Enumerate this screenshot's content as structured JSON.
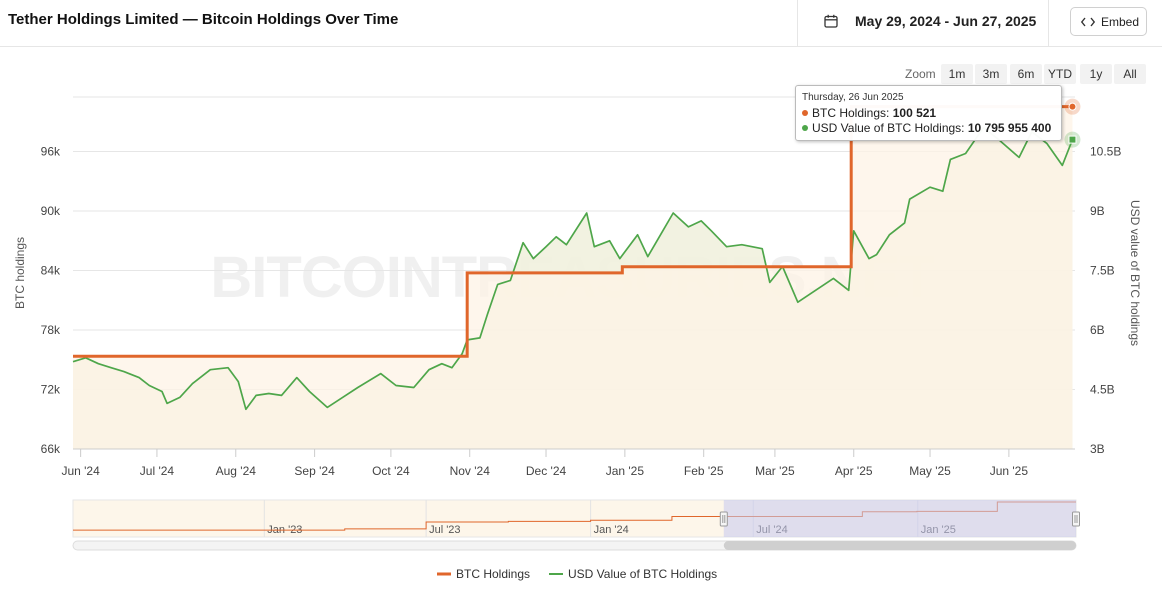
{
  "header": {
    "title": "Tether Holdings Limited — Bitcoin Holdings Over Time",
    "date_range": "May 29, 2024 - Jun 27, 2025",
    "embed_label": "Embed"
  },
  "zoom": {
    "label": "Zoom",
    "buttons": [
      "1m",
      "3m",
      "6m",
      "YTD",
      "1y",
      "All"
    ]
  },
  "watermark": "BITCOINTREASURIES.NET",
  "colors": {
    "btc": "#e0662b",
    "usd": "#4ea64a",
    "btc_fill": "#fdf3e6",
    "usd_fill": "#f1f1de",
    "navigator_mask": "#c7c8ee"
  },
  "tooltip": {
    "date": "Thursday, 26 Jun 2025",
    "btc_label": "BTC Holdings:",
    "btc_value": "100 521",
    "usd_label": "USD Value of BTC Holdings:",
    "usd_value": "10 795 955 400"
  },
  "navigator": {
    "labels": [
      "Jan '23",
      "Jul '23",
      "Jan '24",
      "Jul '24",
      "Jan '25"
    ],
    "label_dates": [
      "2023-01-01",
      "2023-07-01",
      "2024-01-01",
      "2024-07-01",
      "2025-01-01"
    ],
    "range": [
      "2022-06-01",
      "2025-06-27"
    ],
    "selected": [
      "2024-05-29",
      "2025-06-27"
    ],
    "btc_steps": [
      {
        "date": "2022-06-01",
        "value": 52000
      },
      {
        "date": "2023-04-01",
        "value": 54000
      },
      {
        "date": "2023-07-01",
        "value": 66000
      },
      {
        "date": "2023-10-01",
        "value": 67000
      },
      {
        "date": "2024-01-01",
        "value": 69000
      },
      {
        "date": "2024-04-01",
        "value": 75354
      },
      {
        "date": "2024-10-31",
        "value": 83759
      },
      {
        "date": "2024-12-31",
        "value": 84374
      },
      {
        "date": "2025-03-31",
        "value": 100521
      }
    ]
  },
  "chart_data": {
    "type": "line",
    "title": "Tether Holdings Limited — Bitcoin Holdings Over Time",
    "x_range": [
      "2024-05-29",
      "2025-06-27"
    ],
    "x_ticks": [
      {
        "label": "Jun '24",
        "date": "2024-06-01"
      },
      {
        "label": "Jul '24",
        "date": "2024-07-01"
      },
      {
        "label": "Aug '24",
        "date": "2024-08-01"
      },
      {
        "label": "Sep '24",
        "date": "2024-09-01"
      },
      {
        "label": "Oct '24",
        "date": "2024-10-01"
      },
      {
        "label": "Nov '24",
        "date": "2024-11-01"
      },
      {
        "label": "Dec '24",
        "date": "2024-12-01"
      },
      {
        "label": "Jan '25",
        "date": "2025-01-01"
      },
      {
        "label": "Feb '25",
        "date": "2025-02-01"
      },
      {
        "label": "Mar '25",
        "date": "2025-03-01"
      },
      {
        "label": "Apr '25",
        "date": "2025-04-01"
      },
      {
        "label": "May '25",
        "date": "2025-05-01"
      },
      {
        "label": "Jun '25",
        "date": "2025-06-01"
      }
    ],
    "y_left": {
      "label": "BTC holdings",
      "range": [
        66000,
        102000
      ],
      "ticks": [
        66000,
        72000,
        78000,
        84000,
        90000,
        96000
      ],
      "tick_labels": [
        "66k",
        "72k",
        "78k",
        "84k",
        "90k",
        "96k"
      ]
    },
    "y_right": {
      "label": "USD value of BTC holdings",
      "range": [
        3000000000,
        12000000000
      ],
      "ticks": [
        3000000000,
        4500000000,
        6000000000,
        7500000000,
        9000000000,
        10500000000
      ],
      "tick_labels": [
        "3B",
        "4.5B",
        "6B",
        "7.5B",
        "9B",
        "10.5B"
      ]
    },
    "series": [
      {
        "name": "BTC Holdings",
        "axis": "left",
        "step": true,
        "points": [
          {
            "date": "2024-05-29",
            "value": 75354
          },
          {
            "date": "2024-10-31",
            "value": 83759
          },
          {
            "date": "2024-12-31",
            "value": 84374
          },
          {
            "date": "2025-03-31",
            "value": 100521
          },
          {
            "date": "2025-06-26",
            "value": 100521
          }
        ]
      },
      {
        "name": "USD Value of BTC Holdings",
        "axis": "right",
        "step": false,
        "points": [
          {
            "date": "2024-05-29",
            "value": 5200000000
          },
          {
            "date": "2024-06-03",
            "value": 5300000000
          },
          {
            "date": "2024-06-08",
            "value": 5150000000
          },
          {
            "date": "2024-06-13",
            "value": 5050000000
          },
          {
            "date": "2024-06-18",
            "value": 4950000000
          },
          {
            "date": "2024-06-24",
            "value": 4800000000
          },
          {
            "date": "2024-06-28",
            "value": 4600000000
          },
          {
            "date": "2024-07-03",
            "value": 4450000000
          },
          {
            "date": "2024-07-05",
            "value": 4150000000
          },
          {
            "date": "2024-07-10",
            "value": 4300000000
          },
          {
            "date": "2024-07-15",
            "value": 4650000000
          },
          {
            "date": "2024-07-22",
            "value": 5000000000
          },
          {
            "date": "2024-07-29",
            "value": 5050000000
          },
          {
            "date": "2024-08-02",
            "value": 4700000000
          },
          {
            "date": "2024-08-05",
            "value": 4000000000
          },
          {
            "date": "2024-08-09",
            "value": 4350000000
          },
          {
            "date": "2024-08-14",
            "value": 4400000000
          },
          {
            "date": "2024-08-19",
            "value": 4350000000
          },
          {
            "date": "2024-08-25",
            "value": 4800000000
          },
          {
            "date": "2024-08-30",
            "value": 4450000000
          },
          {
            "date": "2024-09-06",
            "value": 4050000000
          },
          {
            "date": "2024-09-12",
            "value": 4300000000
          },
          {
            "date": "2024-09-18",
            "value": 4550000000
          },
          {
            "date": "2024-09-27",
            "value": 4900000000
          },
          {
            "date": "2024-10-03",
            "value": 4600000000
          },
          {
            "date": "2024-10-10",
            "value": 4550000000
          },
          {
            "date": "2024-10-16",
            "value": 5000000000
          },
          {
            "date": "2024-10-21",
            "value": 5150000000
          },
          {
            "date": "2024-10-25",
            "value": 5050000000
          },
          {
            "date": "2024-10-29",
            "value": 5400000000
          },
          {
            "date": "2024-10-31",
            "value": 5750000000
          },
          {
            "date": "2024-11-05",
            "value": 5800000000
          },
          {
            "date": "2024-11-08",
            "value": 6400000000
          },
          {
            "date": "2024-11-12",
            "value": 7150000000
          },
          {
            "date": "2024-11-17",
            "value": 7250000000
          },
          {
            "date": "2024-11-22",
            "value": 8200000000
          },
          {
            "date": "2024-11-26",
            "value": 7800000000
          },
          {
            "date": "2024-12-01",
            "value": 8100000000
          },
          {
            "date": "2024-12-05",
            "value": 8350000000
          },
          {
            "date": "2024-12-09",
            "value": 8150000000
          },
          {
            "date": "2024-12-17",
            "value": 8950000000
          },
          {
            "date": "2024-12-20",
            "value": 8100000000
          },
          {
            "date": "2024-12-26",
            "value": 8250000000
          },
          {
            "date": "2024-12-30",
            "value": 7800000000
          },
          {
            "date": "2025-01-06",
            "value": 8400000000
          },
          {
            "date": "2025-01-10",
            "value": 7850000000
          },
          {
            "date": "2025-01-15",
            "value": 8400000000
          },
          {
            "date": "2025-01-20",
            "value": 8950000000
          },
          {
            "date": "2025-01-26",
            "value": 8600000000
          },
          {
            "date": "2025-01-31",
            "value": 8750000000
          },
          {
            "date": "2025-02-04",
            "value": 8500000000
          },
          {
            "date": "2025-02-10",
            "value": 8100000000
          },
          {
            "date": "2025-02-16",
            "value": 8150000000
          },
          {
            "date": "2025-02-24",
            "value": 8050000000
          },
          {
            "date": "2025-02-27",
            "value": 7200000000
          },
          {
            "date": "2025-03-04",
            "value": 7600000000
          },
          {
            "date": "2025-03-10",
            "value": 6700000000
          },
          {
            "date": "2025-03-17",
            "value": 7000000000
          },
          {
            "date": "2025-03-24",
            "value": 7300000000
          },
          {
            "date": "2025-03-30",
            "value": 7000000000
          },
          {
            "date": "2025-04-01",
            "value": 8500000000
          },
          {
            "date": "2025-04-07",
            "value": 7800000000
          },
          {
            "date": "2025-04-10",
            "value": 7900000000
          },
          {
            "date": "2025-04-15",
            "value": 8400000000
          },
          {
            "date": "2025-04-21",
            "value": 8700000000
          },
          {
            "date": "2025-04-23",
            "value": 9300000000
          },
          {
            "date": "2025-05-01",
            "value": 9600000000
          },
          {
            "date": "2025-05-06",
            "value": 9500000000
          },
          {
            "date": "2025-05-09",
            "value": 10300000000
          },
          {
            "date": "2025-05-15",
            "value": 10450000000
          },
          {
            "date": "2025-05-22",
            "value": 11100000000
          },
          {
            "date": "2025-05-28",
            "value": 10800000000
          },
          {
            "date": "2025-06-05",
            "value": 10350000000
          },
          {
            "date": "2025-06-10",
            "value": 11000000000
          },
          {
            "date": "2025-06-16",
            "value": 10700000000
          },
          {
            "date": "2025-06-22",
            "value": 10150000000
          },
          {
            "date": "2025-06-26",
            "value": 10800000000
          }
        ]
      }
    ],
    "legend": [
      "BTC Holdings",
      "USD Value of BTC Holdings"
    ],
    "legend_position": "bottom-center",
    "grid": true
  }
}
